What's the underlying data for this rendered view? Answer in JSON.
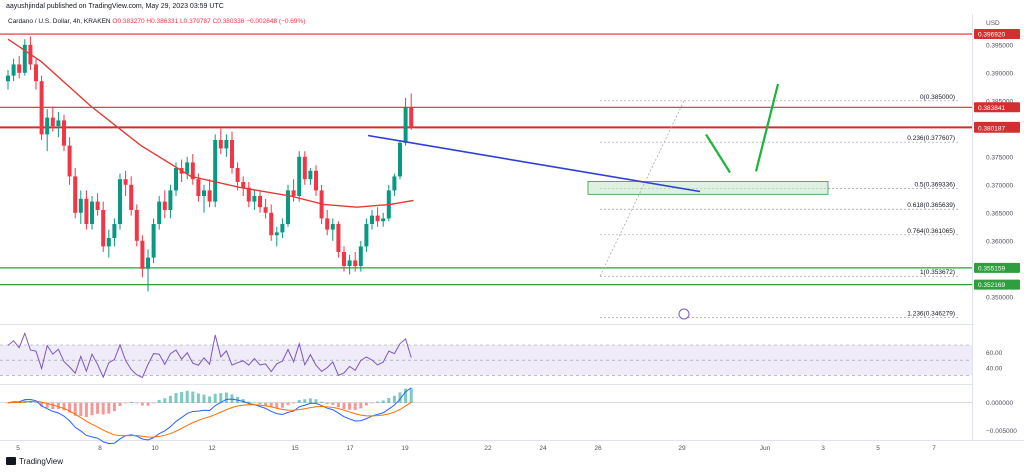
{
  "header": {
    "published": "aayushjindal published on TradingView.com, May 29, 2023 03:59 UTC",
    "symbol": "Cardano / U.S. Dollar, 4h, KRAKEN",
    "open": "O0.383270",
    "high": "H0.386331",
    "low": "L0.379787",
    "close": "C0.380336",
    "change": "−0.002648 (−0.69%)",
    "currency": "USD"
  },
  "footer": {
    "brand": "TradingView"
  },
  "colors": {
    "bull": "#089981",
    "bear": "#f23645",
    "ma": "#e53935",
    "trend": "#2f3fd6",
    "hline_red": "#d32f2f",
    "hline_green": "#2e9e3e",
    "fib": "#9e9e9e",
    "rsi": "#7e57c2",
    "macd": "#2962ff",
    "signal": "#ff6d00"
  },
  "chart_data": [
    {
      "type": "candlestick",
      "x_ticks": [
        "5",
        "8",
        "10",
        "12",
        "15",
        "17",
        "19",
        "22",
        "24",
        "26",
        "29",
        "Jun",
        "3",
        "5",
        "7"
      ],
      "ylim": [
        0.3455,
        0.4005
      ],
      "price_ticks": [
        "0.395000",
        "0.390000",
        "0.385000",
        "0.375000",
        "0.370000",
        "0.365000",
        "0.360000",
        "0.355000",
        "0.350000"
      ],
      "price_tick_values": [
        0.395,
        0.39,
        0.385,
        0.375,
        0.37,
        0.365,
        0.36,
        0.355,
        0.35
      ],
      "labels": [
        {
          "text": "0.396920",
          "value": 0.39692,
          "style": "red"
        },
        {
          "text": "0.383841",
          "value": 0.383841,
          "style": "red"
        },
        {
          "text": "0.380336",
          "value": 0.380336,
          "style": "red"
        },
        {
          "text": "0.380187",
          "value": 0.380187,
          "style": "red"
        },
        {
          "text": "0.355159",
          "value": 0.355159,
          "style": "green"
        },
        {
          "text": "0.352169",
          "value": 0.352169,
          "style": "green"
        }
      ],
      "fib_levels": [
        {
          "text": "0(0.385000)",
          "value": 0.385
        },
        {
          "text": "0.236(0.377607)",
          "value": 0.377607
        },
        {
          "text": "0.5(0.369336)",
          "value": 0.369336
        },
        {
          "text": "0.618(0.365639)",
          "value": 0.365639
        },
        {
          "text": "0.764(0.361065)",
          "value": 0.361065
        },
        {
          "text": "1(0.353672)",
          "value": 0.353672
        },
        {
          "text": "1.236(0.346279)",
          "value": 0.346279
        }
      ],
      "candles": [
        [
          0.3885,
          0.3905,
          0.387,
          0.3895
        ],
        [
          0.3895,
          0.3925,
          0.3885,
          0.3915
        ],
        [
          0.3915,
          0.393,
          0.389,
          0.39
        ],
        [
          0.39,
          0.396,
          0.3895,
          0.395
        ],
        [
          0.395,
          0.3965,
          0.3905,
          0.3915
        ],
        [
          0.3915,
          0.3925,
          0.387,
          0.3885
        ],
        [
          0.3885,
          0.3895,
          0.378,
          0.379
        ],
        [
          0.379,
          0.3835,
          0.376,
          0.382
        ],
        [
          0.382,
          0.384,
          0.3795,
          0.3805
        ],
        [
          0.3805,
          0.383,
          0.3785,
          0.3815
        ],
        [
          0.3815,
          0.3825,
          0.376,
          0.377
        ],
        [
          0.377,
          0.3785,
          0.37,
          0.3715
        ],
        [
          0.3715,
          0.373,
          0.364,
          0.365
        ],
        [
          0.365,
          0.369,
          0.363,
          0.3675
        ],
        [
          0.3675,
          0.369,
          0.362,
          0.363
        ],
        [
          0.363,
          0.368,
          0.362,
          0.367
        ],
        [
          0.367,
          0.3685,
          0.3645,
          0.3655
        ],
        [
          0.3655,
          0.367,
          0.358,
          0.359
        ],
        [
          0.359,
          0.362,
          0.357,
          0.3605
        ],
        [
          0.3605,
          0.364,
          0.359,
          0.363
        ],
        [
          0.363,
          0.372,
          0.362,
          0.371
        ],
        [
          0.371,
          0.3725,
          0.368,
          0.37
        ],
        [
          0.37,
          0.3715,
          0.3645,
          0.3655
        ],
        [
          0.3655,
          0.3665,
          0.359,
          0.36
        ],
        [
          0.36,
          0.361,
          0.3535,
          0.355
        ],
        [
          0.355,
          0.3585,
          0.351,
          0.357
        ],
        [
          0.357,
          0.364,
          0.356,
          0.363
        ],
        [
          0.363,
          0.368,
          0.362,
          0.367
        ],
        [
          0.367,
          0.369,
          0.364,
          0.3655
        ],
        [
          0.3655,
          0.37,
          0.364,
          0.369
        ],
        [
          0.369,
          0.374,
          0.368,
          0.373
        ],
        [
          0.373,
          0.3745,
          0.3705,
          0.372
        ],
        [
          0.372,
          0.375,
          0.371,
          0.374
        ],
        [
          0.374,
          0.3755,
          0.37,
          0.371
        ],
        [
          0.371,
          0.372,
          0.367,
          0.368
        ],
        [
          0.368,
          0.37,
          0.365,
          0.369
        ],
        [
          0.369,
          0.371,
          0.366,
          0.367
        ],
        [
          0.367,
          0.379,
          0.366,
          0.378
        ],
        [
          0.378,
          0.38,
          0.3755,
          0.3765
        ],
        [
          0.3765,
          0.379,
          0.375,
          0.378
        ],
        [
          0.378,
          0.3795,
          0.372,
          0.373
        ],
        [
          0.373,
          0.374,
          0.369,
          0.3705
        ],
        [
          0.3705,
          0.3715,
          0.368,
          0.3695
        ],
        [
          0.3695,
          0.3705,
          0.366,
          0.367
        ],
        [
          0.367,
          0.369,
          0.3655,
          0.368
        ],
        [
          0.368,
          0.369,
          0.365,
          0.366
        ],
        [
          0.366,
          0.3675,
          0.364,
          0.365
        ],
        [
          0.365,
          0.3665,
          0.36,
          0.361
        ],
        [
          0.361,
          0.3625,
          0.359,
          0.3615
        ],
        [
          0.3615,
          0.364,
          0.3605,
          0.363
        ],
        [
          0.363,
          0.37,
          0.3625,
          0.369
        ],
        [
          0.369,
          0.371,
          0.367,
          0.368
        ],
        [
          0.368,
          0.376,
          0.367,
          0.375
        ],
        [
          0.375,
          0.376,
          0.37,
          0.371
        ],
        [
          0.371,
          0.373,
          0.37,
          0.3725
        ],
        [
          0.3725,
          0.3735,
          0.368,
          0.369
        ],
        [
          0.369,
          0.37,
          0.363,
          0.364
        ],
        [
          0.364,
          0.3655,
          0.361,
          0.362
        ],
        [
          0.362,
          0.364,
          0.36,
          0.363
        ],
        [
          0.363,
          0.3635,
          0.357,
          0.358
        ],
        [
          0.358,
          0.359,
          0.3545,
          0.3555
        ],
        [
          0.3555,
          0.3575,
          0.354,
          0.3565
        ],
        [
          0.3565,
          0.358,
          0.3545,
          0.3555
        ],
        [
          0.3555,
          0.36,
          0.3545,
          0.359
        ],
        [
          0.359,
          0.364,
          0.358,
          0.363
        ],
        [
          0.363,
          0.3655,
          0.362,
          0.3645
        ],
        [
          0.3645,
          0.366,
          0.3625,
          0.3635
        ],
        [
          0.3635,
          0.365,
          0.3625,
          0.364
        ],
        [
          0.364,
          0.37,
          0.3635,
          0.369
        ],
        [
          0.369,
          0.372,
          0.368,
          0.3715
        ],
        [
          0.3715,
          0.378,
          0.371,
          0.3775
        ],
        [
          0.3775,
          0.3855,
          0.377,
          0.3838
        ],
        [
          0.3838,
          0.3863,
          0.3798,
          0.3803
        ]
      ],
      "moving_average": [
        [
          0,
          0.396
        ],
        [
          10,
          0.392
        ],
        [
          25,
          0.384
        ],
        [
          40,
          0.377
        ],
        [
          55,
          0.3715
        ],
        [
          70,
          0.3695
        ],
        [
          85,
          0.368
        ],
        [
          95,
          0.3665
        ],
        [
          105,
          0.366
        ],
        [
          115,
          0.3665
        ],
        [
          122,
          0.3672
        ]
      ]
    },
    {
      "type": "line",
      "name": "RSI",
      "ticks": [
        "60.00",
        "40.00"
      ],
      "tick_values": [
        60,
        40
      ],
      "ylim": [
        20,
        95
      ]
    },
    {
      "type": "line",
      "name": "MACD",
      "ticks": [
        "0.000000",
        "−0.005000"
      ],
      "tick_values": [
        0,
        -0.005
      ],
      "ylim": [
        -0.0065,
        0.003
      ]
    }
  ]
}
